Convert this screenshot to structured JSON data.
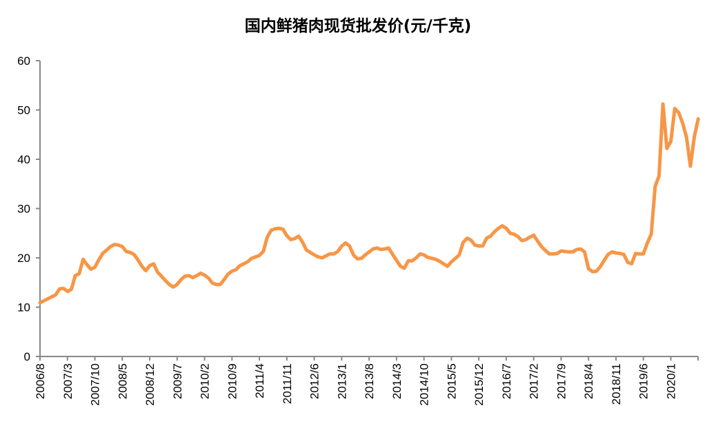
{
  "chart_data": {
    "type": "line",
    "title": "国内鲜猪肉现货批发价(元/千克)",
    "xlabel": "",
    "ylabel": "",
    "ylim": [
      0,
      60
    ],
    "yticks": [
      0,
      10,
      20,
      30,
      40,
      50,
      60
    ],
    "xtick_labels": [
      "2006/8",
      "2007/3",
      "2007/10",
      "2008/5",
      "2008/12",
      "2009/7",
      "2010/2",
      "2010/9",
      "2011/4",
      "2011/11",
      "2012/6",
      "2013/1",
      "2013/8",
      "2014/3",
      "2014/10",
      "2015/5",
      "2015/12",
      "2016/7",
      "2017/2",
      "2017/9",
      "2018/4",
      "2018/11",
      "2019/6",
      "2020/1"
    ],
    "grid": false,
    "legend": "none",
    "line_color": "#F79646",
    "axis_color": "#888888",
    "start": "2006/8",
    "values": [
      10.9,
      11.3,
      11.7,
      12.1,
      12.5,
      13.7,
      13.8,
      13.2,
      13.6,
      16.4,
      16.8,
      19.7,
      18.6,
      17.7,
      18.1,
      19.6,
      20.9,
      21.6,
      22.3,
      22.7,
      22.6,
      22.3,
      21.3,
      21.1,
      20.7,
      19.6,
      18.3,
      17.4,
      18.4,
      18.8,
      17.1,
      16.3,
      15.4,
      14.6,
      14.1,
      14.6,
      15.6,
      16.3,
      16.4,
      16.0,
      16.4,
      16.9,
      16.5,
      15.9,
      14.9,
      14.6,
      14.6,
      15.6,
      16.7,
      17.3,
      17.6,
      18.4,
      18.8,
      19.2,
      19.9,
      20.2,
      20.5,
      21.3,
      24.2,
      25.6,
      25.9,
      26.0,
      25.8,
      24.5,
      23.7,
      23.9,
      24.4,
      23.2,
      21.6,
      21.1,
      20.6,
      20.2,
      20.0,
      20.4,
      20.8,
      20.8,
      21.3,
      22.4,
      23.0,
      22.4,
      20.6,
      19.8,
      19.9,
      20.6,
      21.2,
      21.8,
      22.0,
      21.7,
      21.8,
      22.0,
      20.7,
      19.5,
      18.3,
      17.9,
      19.4,
      19.4,
      20.0,
      20.8,
      20.6,
      20.1,
      19.9,
      19.7,
      19.3,
      18.8,
      18.3,
      19.2,
      19.9,
      20.6,
      23.1,
      24.0,
      23.6,
      22.6,
      22.4,
      22.4,
      24.0,
      24.4,
      25.3,
      26.0,
      26.5,
      26.0,
      25.0,
      24.8,
      24.3,
      23.5,
      23.7,
      24.2,
      24.6,
      23.4,
      22.3,
      21.5,
      20.8,
      20.8,
      20.9,
      21.4,
      21.3,
      21.2,
      21.2,
      21.7,
      21.8,
      21.2,
      17.8,
      17.2,
      17.3,
      18.2,
      19.5,
      20.7,
      21.2,
      21.0,
      20.9,
      20.7,
      19.1,
      18.8,
      20.9,
      20.8,
      20.8,
      23.0,
      24.8,
      34.5,
      36.6,
      51.2,
      42.2,
      43.6,
      50.3,
      49.5,
      47.4,
      44.5,
      38.6,
      44.6,
      48.2
    ]
  }
}
